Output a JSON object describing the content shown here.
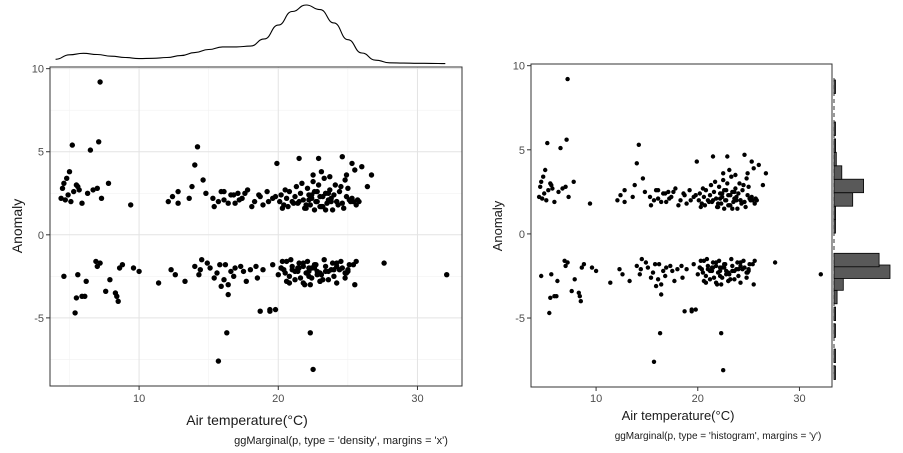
{
  "chart_data": [
    {
      "type": "scatter",
      "marginal": "density",
      "marginal_axis": "x",
      "xlabel": "Air temperature(°C)",
      "ylabel": "Anomaly",
      "caption": "ggMarginal(p, type = 'density', margins = 'x')",
      "xlim": [
        3.6,
        33.2
      ],
      "ylim": [
        -9.1,
        10.1
      ],
      "x_ticks": [
        10,
        20,
        30
      ],
      "y_ticks": [
        -5,
        0,
        5,
        10
      ],
      "grid": true,
      "density_curve": {
        "x": [
          4,
          5,
          6,
          7,
          8,
          9,
          10,
          11,
          12,
          13,
          14,
          15,
          16,
          17,
          18,
          19,
          20,
          21,
          22,
          23,
          24,
          25,
          26,
          27,
          28,
          29,
          30,
          31,
          32
        ],
        "y": [
          0.0065,
          0.0126,
          0.0147,
          0.0131,
          0.0108,
          0.0089,
          0.0075,
          0.0078,
          0.0089,
          0.0115,
          0.0157,
          0.02,
          0.0236,
          0.0236,
          0.0246,
          0.0346,
          0.0535,
          0.0722,
          0.0812,
          0.0749,
          0.0566,
          0.0335,
          0.0152,
          0.0052,
          0.0016,
          0.0012,
          0.001,
          0.0008,
          0.0005
        ]
      },
      "points": {
        "x": [
          4.4,
          4.5,
          4.6,
          4.8,
          4.9,
          5.1,
          5.3,
          5.5,
          5.7,
          5.9,
          4.7,
          5.0,
          5.6,
          6.3,
          6.7,
          7.0,
          7.3,
          7.8,
          5.2,
          6.5,
          7.1,
          7.2,
          9.4,
          4.6,
          5.6,
          5.9,
          6.2,
          6.9,
          7.0,
          7.2,
          7.9,
          8.3,
          8.6,
          8.8,
          9.6,
          10.0,
          5.5,
          5.4,
          6.1,
          7.6,
          8.4,
          8.5,
          11.4,
          12.3,
          12.6,
          13.3,
          12.1,
          12.8,
          12.4,
          13.6,
          12.8,
          13.8,
          14.0,
          14.2,
          14.6,
          14.8,
          15.3,
          15.7,
          15.9,
          16.1,
          16.6,
          16.9,
          17.1,
          17.4,
          17.8,
          18.3,
          18.6,
          18.9,
          19.2,
          19.8,
          15.4,
          16.1,
          16.4,
          16.8,
          17.2,
          17.6,
          18.1,
          18.7,
          19.3,
          19.6,
          14.0,
          14.4,
          14.9,
          15.6,
          16.2,
          16.9,
          17.5,
          18.4,
          18.9,
          14.5,
          15.1,
          15.8,
          16.6,
          17.3,
          18.0,
          14.3,
          15.4,
          16.1,
          16.8,
          17.7,
          18.5,
          15.9,
          16.4,
          16.4,
          18.7,
          19.4,
          15.7,
          16.3,
          19.9,
          20.1,
          20.2,
          20.4,
          20.6,
          20.8,
          21.0,
          21.2,
          21.4,
          21.6,
          21.8,
          22.0,
          22.2,
          22.4,
          22.6,
          22.8,
          23.0,
          23.2,
          23.4,
          23.6,
          23.8,
          24.0,
          24.2,
          24.4,
          24.6,
          24.9,
          25.1,
          25.4,
          20.3,
          20.7,
          21.1,
          21.5,
          21.9,
          22.3,
          22.7,
          23.1,
          23.5,
          23.9,
          24.3,
          24.7,
          25.2,
          20.5,
          21.3,
          22.1,
          22.9,
          23.7,
          24.5,
          25.0,
          21.7,
          22.5,
          23.3,
          24.1,
          24.8,
          22.4,
          22.8,
          23.2,
          23.6,
          22.0,
          22.6,
          23.0,
          23.4,
          22.2,
          23.8,
          21.5,
          22.9,
          25.3,
          26.0,
          26.7,
          25.6,
          22.5,
          23.1,
          23.7,
          24.6,
          25.5,
          26.4,
          24.9,
          25.7,
          24.2,
          25.3,
          25.8,
          20.2,
          20.6,
          21.0,
          21.4,
          21.8,
          22.2,
          22.6,
          23.0,
          23.4,
          23.8,
          24.2,
          24.6,
          25.0,
          25.4,
          20.0,
          20.4,
          20.8,
          21.2,
          21.6,
          22.0,
          22.4,
          22.8,
          23.2,
          23.6,
          24.0,
          24.4,
          24.8,
          20.3,
          20.9,
          21.5,
          22.1,
          22.7,
          23.3,
          23.9,
          24.5,
          25.1,
          25.6,
          20.6,
          21.2,
          21.8,
          22.4,
          23.0,
          23.6,
          24.2,
          24.8,
          20.2,
          21.0,
          21.8,
          22.6,
          23.4,
          24.2,
          25.0,
          20.5,
          21.4,
          22.2,
          23.1,
          24.0,
          24.9,
          20.8,
          21.9,
          23.0,
          22.2,
          21.5,
          22.8,
          25.5,
          22.3,
          27.6,
          32.1,
          19.4,
          19.8,
          19.6,
          22.3,
          22.5
        ],
        "y": [
          2.2,
          2.8,
          3.1,
          3.4,
          2.4,
          2.0,
          2.6,
          3.0,
          2.7,
          1.9,
          2.1,
          3.8,
          2.9,
          2.5,
          2.7,
          2.8,
          2.2,
          3.1,
          5.4,
          5.1,
          5.6,
          9.2,
          1.8,
          -2.5,
          -2.4,
          -3.7,
          -2.8,
          -1.6,
          -1.9,
          -1.7,
          -2.7,
          -3.5,
          -2.0,
          -1.8,
          -2.0,
          -2.2,
          -3.8,
          -4.7,
          -3.7,
          -3.4,
          -3.7,
          -4.0,
          -2.9,
          -2.1,
          -2.4,
          -2.8,
          2.0,
          2.6,
          2.3,
          2.2,
          1.9,
          2.9,
          4.2,
          5.3,
          3.3,
          2.5,
          2.2,
          2.0,
          2.6,
          2.1,
          2.4,
          1.9,
          2.5,
          2.2,
          2.7,
          2.0,
          2.4,
          1.8,
          2.6,
          2.3,
          1.7,
          2.6,
          1.9,
          2.4,
          2.1,
          2.5,
          1.7,
          2.3,
          2.0,
          2.2,
          -1.9,
          -2.1,
          -1.7,
          -2.3,
          -1.8,
          -2.0,
          -2.2,
          -1.9,
          -2.1,
          -1.5,
          -2.0,
          -1.8,
          -2.2,
          -1.9,
          -2.1,
          -2.4,
          -2.6,
          -2.7,
          -2.5,
          -2.8,
          -2.6,
          -3.1,
          -3.0,
          -3.6,
          -4.6,
          -4.5,
          -7.6,
          -5.9,
          4.3,
          2.0,
          2.4,
          1.8,
          2.2,
          2.6,
          2.0,
          2.3,
          1.9,
          2.5,
          2.1,
          1.8,
          2.4,
          2.2,
          2.6,
          2.0,
          2.3,
          1.7,
          2.5,
          2.1,
          2.2,
          2.4,
          2.0,
          2.6,
          1.9,
          2.3,
          2.1,
          2.0,
          1.6,
          1.7,
          1.9,
          2.0,
          1.6,
          1.8,
          2.0,
          1.7,
          1.9,
          1.5,
          1.8,
          1.6,
          2.0,
          2.7,
          2.9,
          2.8,
          3.0,
          2.7,
          2.9,
          2.8,
          3.1,
          3.2,
          3.4,
          3.0,
          3.3,
          2.4,
          2.6,
          2.3,
          2.5,
          1.6,
          1.5,
          1.7,
          1.5,
          2.1,
          2.0,
          4.6,
          4.6,
          4.3,
          4.1,
          3.6,
          1.8,
          3.6,
          3.8,
          3.5,
          4.7,
          3.9,
          2.9,
          3.6,
          2.1,
          2.0,
          2.2,
          2.0,
          -2.0,
          -1.6,
          -1.9,
          -2.2,
          -1.7,
          -2.0,
          -1.8,
          -2.3,
          -1.9,
          -2.1,
          -1.7,
          -2.0,
          -2.2,
          -1.8,
          -2.4,
          -2.1,
          -2.5,
          -2.2,
          -2.6,
          -2.3,
          -2.0,
          -2.4,
          -2.7,
          -2.2,
          -2.5,
          -2.1,
          -2.3,
          -1.6,
          -1.5,
          -1.7,
          -1.6,
          -1.8,
          -1.5,
          -1.7,
          -1.6,
          -1.8,
          -1.6,
          -2.8,
          -2.7,
          -2.9,
          -2.6,
          -2.8,
          -2.7,
          -2.9,
          -2.6,
          -2.0,
          -2.1,
          -1.9,
          -2.0,
          -2.2,
          -1.9,
          -2.1,
          -2.3,
          -2.0,
          -2.2,
          -2.4,
          -2.1,
          -2.3,
          -2.9,
          -3.0,
          -2.8,
          -2.5,
          -2.0,
          -2.2,
          -3.0,
          -3.0,
          -1.7,
          -2.4,
          -4.6,
          -4.5,
          -1.8,
          -5.9,
          -8.1
        ]
      }
    },
    {
      "type": "scatter",
      "marginal": "histogram",
      "marginal_axis": "y",
      "xlabel": "Air temperature(°C)",
      "ylabel": "Anomaly",
      "caption": "ggMarginal(p, type = 'histogram', margins = 'y')",
      "xlim": [
        3.6,
        33.2
      ],
      "ylim": [
        -9.1,
        10.1
      ],
      "x_ticks": [
        10,
        20,
        30
      ],
      "y_ticks": [
        -5,
        0,
        5,
        10
      ],
      "grid": false,
      "same_points_as_left": true,
      "histogram_bins": {
        "bin_centers": [
          -8.25,
          -7.25,
          -5.75,
          -4.75,
          -3.75,
          -2.95,
          -2.25,
          -1.55,
          0.45,
          1.25,
          2.05,
          2.85,
          3.65,
          4.45,
          5.25,
          6.25,
          8.75
        ],
        "counts": [
          1,
          1,
          1,
          2,
          4,
          12,
          72,
          58,
          1,
          2,
          24,
          38,
          10,
          3,
          2,
          1,
          1
        ]
      }
    }
  ]
}
